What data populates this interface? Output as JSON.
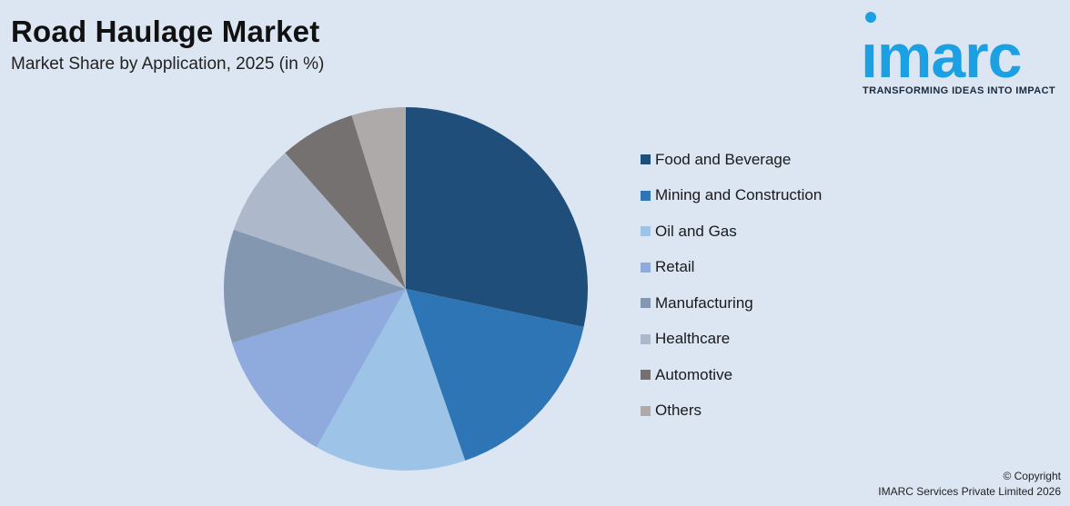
{
  "header": {
    "title": "Road Haulage Market",
    "subtitle": "Market Share by Application, 2025 (in %)"
  },
  "logo": {
    "word": "ımarc",
    "tagline": "TRANSFORMING IDEAS INTO IMPACT",
    "color": "#1aa0e3"
  },
  "footer": {
    "line1": "© Copyright",
    "line2": "IMARC Services Private Limited 2026"
  },
  "chart_data": {
    "type": "pie",
    "title": "Road Haulage Market",
    "subtitle": "Market Share by Application, 2025 (in %)",
    "legend_position": "right",
    "start_angle_deg": 0,
    "direction": "clockwise",
    "slices": [
      {
        "label": "Food and Beverage",
        "value": 29.5,
        "color": "#1f4e7a"
      },
      {
        "label": "Mining and Construction",
        "value": 17.0,
        "color": "#2e75b6"
      },
      {
        "label": "Oil and Gas",
        "value": 14.0,
        "color": "#9dc3e6"
      },
      {
        "label": "Retail",
        "value": 12.5,
        "color": "#8faadc"
      },
      {
        "label": "Manufacturing",
        "value": 10.5,
        "color": "#8497b0"
      },
      {
        "label": "Healthcare",
        "value": 8.5,
        "color": "#adb9ca"
      },
      {
        "label": "Automotive",
        "value": 7.0,
        "color": "#767171"
      },
      {
        "label": "Others",
        "value": 5.0,
        "color": "#aeaaaa"
      }
    ]
  }
}
